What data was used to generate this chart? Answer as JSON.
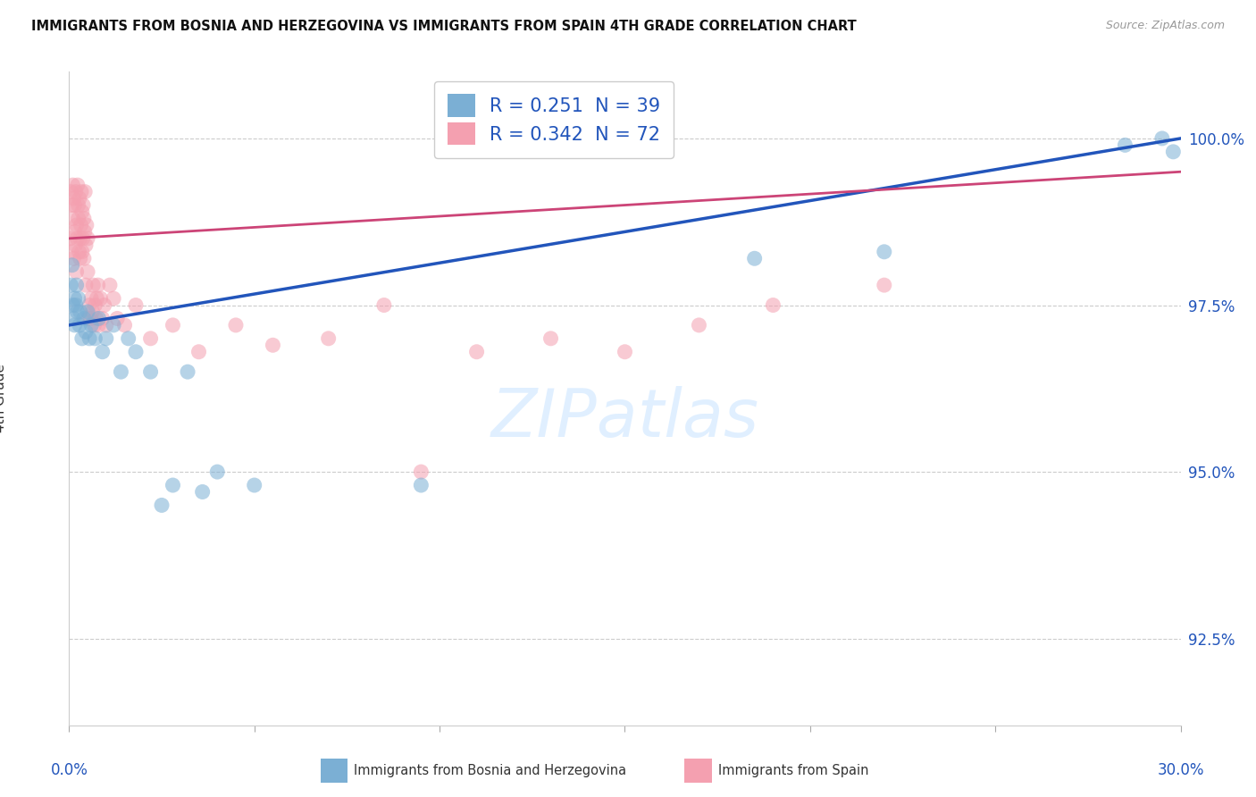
{
  "title": "IMMIGRANTS FROM BOSNIA AND HERZEGOVINA VS IMMIGRANTS FROM SPAIN 4TH GRADE CORRELATION CHART",
  "source": "Source: ZipAtlas.com",
  "ylabel": "4th Grade",
  "yticks": [
    92.5,
    95.0,
    97.5,
    100.0
  ],
  "xlim": [
    0.0,
    30.0
  ],
  "ylim": [
    91.2,
    101.0
  ],
  "r_bosnia": 0.251,
  "n_bosnia": 39,
  "r_spain": 0.342,
  "n_spain": 72,
  "legend_label_bosnia": "Immigrants from Bosnia and Herzegovina",
  "legend_label_spain": "Immigrants from Spain",
  "color_bosnia": "#7BAFD4",
  "color_spain": "#F4A0B0",
  "color_bosnia_line": "#2255BB",
  "color_spain_line": "#CC4477",
  "watermark_color": "#DDEEFF",
  "bosnia_x": [
    0.05,
    0.08,
    0.1,
    0.12,
    0.15,
    0.15,
    0.18,
    0.2,
    0.22,
    0.25,
    0.28,
    0.3,
    0.35,
    0.4,
    0.45,
    0.5,
    0.55,
    0.6,
    0.7,
    0.8,
    0.9,
    1.0,
    1.2,
    1.4,
    1.6,
    1.8,
    2.2,
    2.5,
    2.8,
    3.2,
    3.6,
    4.0,
    5.0,
    9.5,
    18.5,
    22.0,
    28.5,
    29.5,
    29.8
  ],
  "bosnia_y": [
    97.8,
    98.1,
    97.5,
    97.3,
    97.6,
    97.2,
    97.5,
    97.8,
    97.4,
    97.6,
    97.2,
    97.4,
    97.0,
    97.3,
    97.1,
    97.4,
    97.0,
    97.2,
    97.0,
    97.3,
    96.8,
    97.0,
    97.2,
    96.5,
    97.0,
    96.8,
    96.5,
    94.5,
    94.8,
    96.5,
    94.7,
    95.0,
    94.8,
    94.8,
    98.2,
    98.3,
    99.9,
    100.0,
    99.8
  ],
  "spain_x": [
    0.03,
    0.05,
    0.07,
    0.08,
    0.1,
    0.1,
    0.12,
    0.13,
    0.15,
    0.15,
    0.17,
    0.18,
    0.2,
    0.2,
    0.22,
    0.23,
    0.25,
    0.25,
    0.27,
    0.28,
    0.3,
    0.3,
    0.32,
    0.33,
    0.35,
    0.35,
    0.37,
    0.38,
    0.4,
    0.4,
    0.42,
    0.43,
    0.45,
    0.45,
    0.47,
    0.5,
    0.5,
    0.52,
    0.55,
    0.58,
    0.6,
    0.63,
    0.65,
    0.68,
    0.7,
    0.73,
    0.75,
    0.78,
    0.8,
    0.85,
    0.9,
    0.95,
    1.0,
    1.1,
    1.2,
    1.3,
    1.5,
    1.8,
    2.2,
    2.8,
    3.5,
    4.5,
    5.5,
    7.0,
    8.5,
    9.5,
    11.0,
    13.0,
    15.0,
    17.0,
    19.0,
    22.0
  ],
  "spain_y": [
    98.5,
    99.2,
    98.3,
    99.0,
    98.8,
    99.3,
    98.2,
    99.1,
    98.6,
    99.0,
    98.4,
    99.2,
    98.0,
    98.7,
    98.5,
    99.3,
    98.8,
    99.0,
    98.3,
    99.1,
    98.5,
    98.2,
    98.7,
    99.2,
    98.3,
    98.9,
    98.5,
    99.0,
    98.2,
    98.8,
    98.6,
    99.2,
    98.4,
    97.8,
    98.7,
    98.5,
    98.0,
    97.3,
    97.5,
    97.3,
    97.6,
    97.4,
    97.8,
    97.2,
    97.5,
    97.3,
    97.6,
    97.8,
    97.2,
    97.6,
    97.3,
    97.5,
    97.2,
    97.8,
    97.6,
    97.3,
    97.2,
    97.5,
    97.0,
    97.2,
    96.8,
    97.2,
    96.9,
    97.0,
    97.5,
    95.0,
    96.8,
    97.0,
    96.8,
    97.2,
    97.5,
    97.8
  ]
}
